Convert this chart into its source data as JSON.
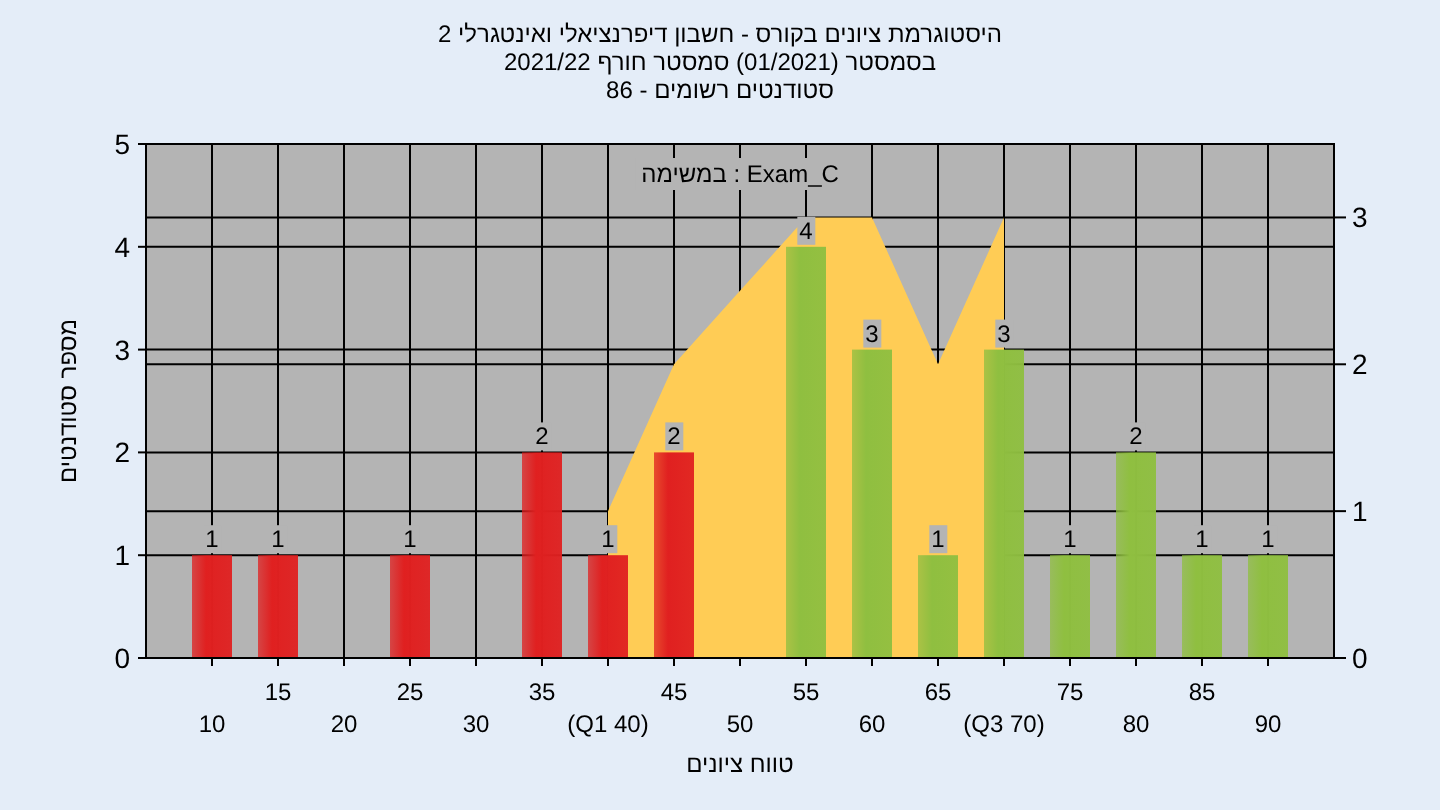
{
  "chart_data": {
    "type": "bar",
    "title": "היסטוגרמת ציונים בקורס - חשבון דיפרנציאלי ואינטגרלי 2",
    "subtitle": "בסמסטר (01/2021) סמסטר חורף 2021/22",
    "annotations": [
      "סטודנטים רשומים - 86",
      "במשימה : Exam_C"
    ],
    "xlabel": "טווח ציונים",
    "ylabel": "מספר סטודנטים",
    "categories": [
      "10",
      "15",
      "20",
      "25",
      "30",
      "35",
      "(Q1 40)",
      "45",
      "50",
      "55",
      "60",
      "65",
      "(Q3 70)",
      "75",
      "80",
      "85",
      "90"
    ],
    "series": [
      {
        "type": "area",
        "axis": "y2",
        "color": "#ffcc55",
        "values": [
          null,
          null,
          null,
          null,
          null,
          null,
          1,
          2,
          2.5,
          3,
          3,
          2,
          3,
          null,
          null,
          null,
          null
        ]
      },
      {
        "values": [
          1,
          1,
          null,
          1,
          null,
          2,
          1,
          2,
          null,
          4,
          3,
          1,
          3,
          1,
          2,
          1,
          1
        ],
        "value_labels": [
          "1",
          "1",
          null,
          "1",
          null,
          "2",
          "1",
          "2",
          null,
          "4",
          "3",
          "1",
          "3",
          "1",
          "2",
          "1",
          "1"
        ],
        "colors": [
          "#e02020",
          "#e02020",
          null,
          "#e02020",
          null,
          "#e02020",
          "#e02020",
          "#e02020",
          null,
          "#8fbf40",
          "#8fbf40",
          "#8fbf40",
          "#8fbf40",
          "#8fbf40",
          "#8fbf40",
          "#8fbf40",
          "#8fbf40"
        ]
      }
    ],
    "ylim": [
      0,
      5
    ],
    "yticks": [
      0,
      1,
      2,
      3,
      4,
      5
    ],
    "y2lim": [
      0,
      3.5
    ],
    "y2ticks": [
      0,
      1,
      2,
      3
    ],
    "grid": true
  }
}
